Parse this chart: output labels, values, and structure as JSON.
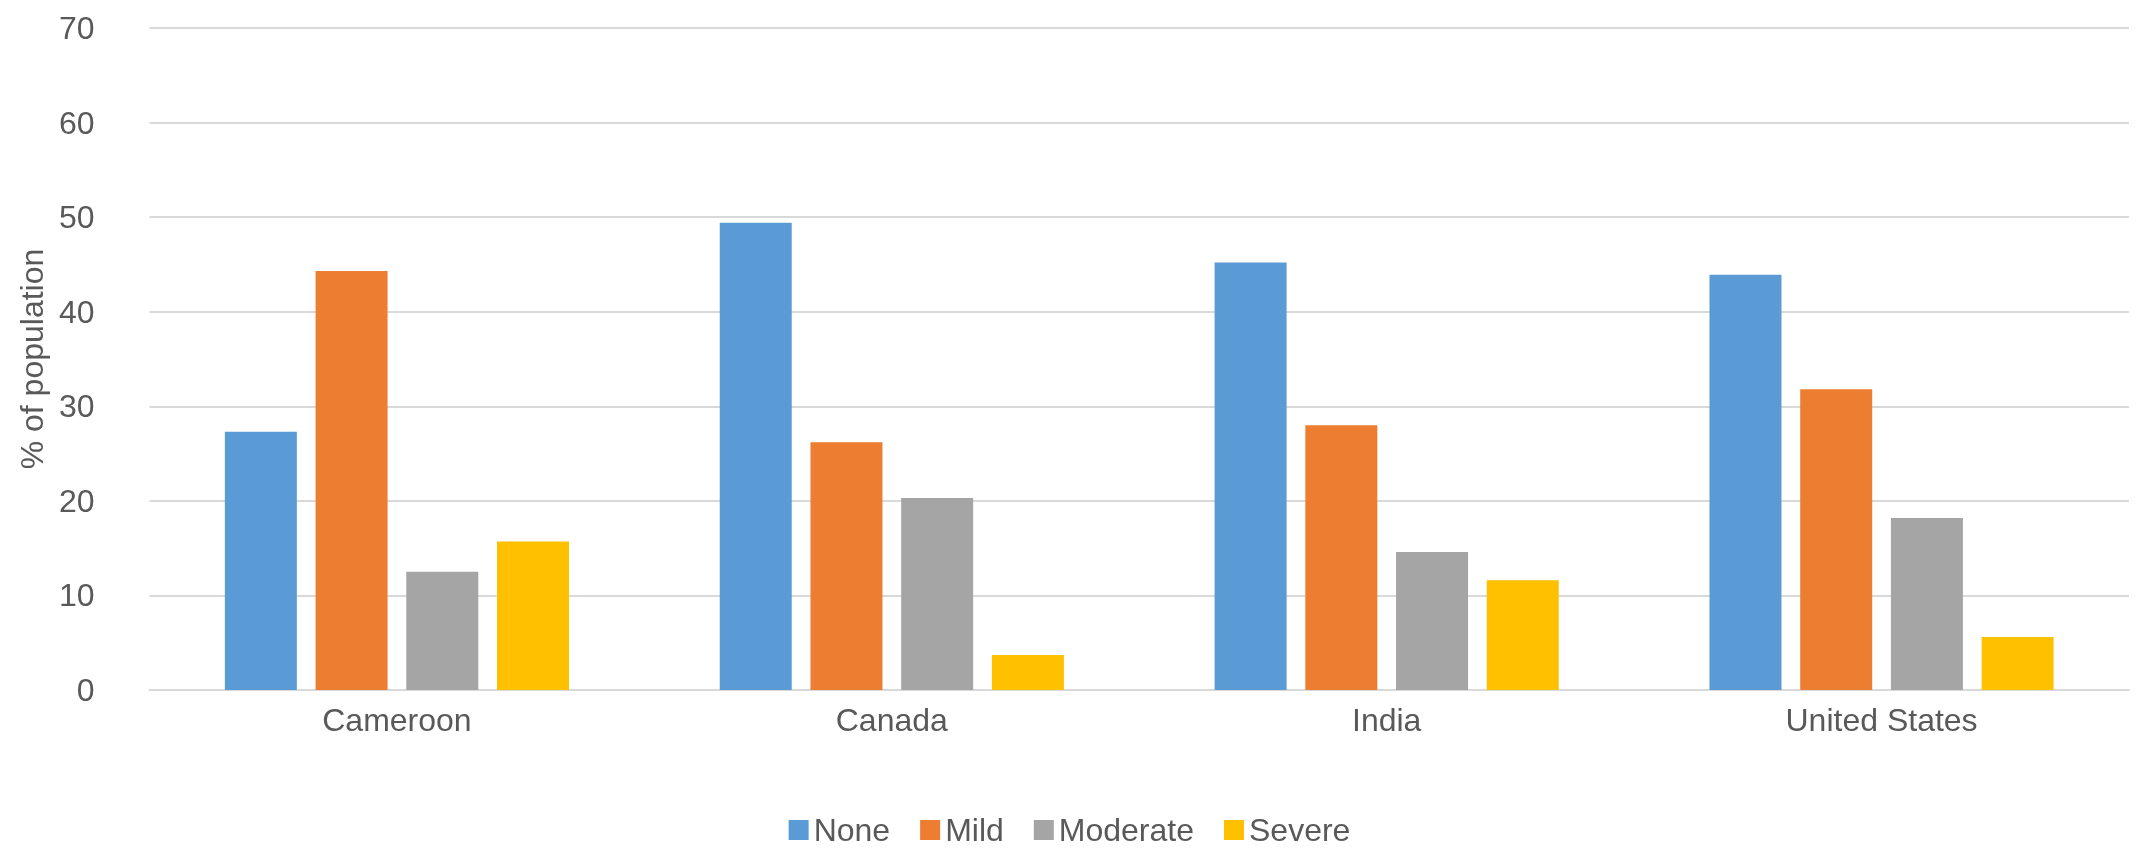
{
  "chart_data": {
    "type": "bar",
    "ylabel": "% of population",
    "categories": [
      "Cameroon",
      "Canada",
      "India",
      "United States"
    ],
    "series": [
      {
        "name": "None",
        "color": "#5b9bd5",
        "values": [
          27.3,
          49.4,
          45.2,
          43.9
        ]
      },
      {
        "name": "Mild",
        "color": "#ed7d31",
        "values": [
          44.3,
          26.2,
          28.0,
          31.8
        ]
      },
      {
        "name": "Moderate",
        "color": "#a5a5a5",
        "values": [
          12.5,
          20.3,
          14.6,
          18.2
        ]
      },
      {
        "name": "Severe",
        "color": "#ffc000",
        "values": [
          15.7,
          3.7,
          11.6,
          5.6
        ]
      }
    ],
    "ylim": [
      0,
      70
    ],
    "yticks": [
      0,
      10,
      20,
      30,
      40,
      50,
      60,
      70
    ],
    "grid": "y",
    "legend": "bottom"
  }
}
